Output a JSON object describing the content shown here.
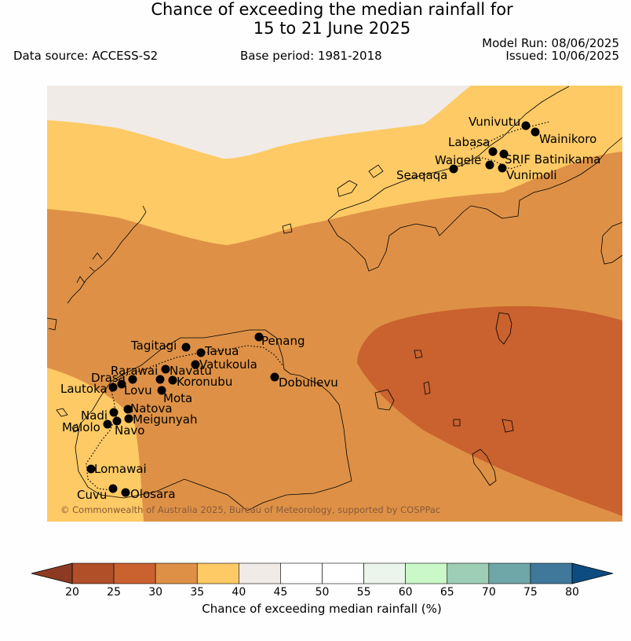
{
  "title": {
    "line1": "Chance of exceeding the median rainfall for",
    "line2": "15 to 21 June 2025"
  },
  "meta": {
    "data_source": "Data source: ACCESS-S2",
    "base_period": "Base period: 1981-2018",
    "model_run": "Model Run: 08/06/2025",
    "issued": "Issued: 10/06/2025"
  },
  "copyright": "© Commonwealth of Australia 2025, Bureau of Meteorology, supported by COSPPac",
  "towns": [
    {
      "name": "Vunivutu"
    },
    {
      "name": "Wainikoro"
    },
    {
      "name": "Labasa"
    },
    {
      "name": "SRIF Batinikama"
    },
    {
      "name": "Waiqele"
    },
    {
      "name": "Seaqaqa"
    },
    {
      "name": "Vunimoli"
    },
    {
      "name": "Tagitagi"
    },
    {
      "name": "Tavua"
    },
    {
      "name": "Penang"
    },
    {
      "name": "Rarawai"
    },
    {
      "name": "Navatu"
    },
    {
      "name": "Vatukoula"
    },
    {
      "name": "Drasa"
    },
    {
      "name": "Koronubu"
    },
    {
      "name": "Dobuilevu"
    },
    {
      "name": "Lautoka"
    },
    {
      "name": "Lovu"
    },
    {
      "name": "Mota"
    },
    {
      "name": "Nadi"
    },
    {
      "name": "Natova"
    },
    {
      "name": "Meigunyah"
    },
    {
      "name": "Malolo"
    },
    {
      "name": "Navo"
    },
    {
      "name": "Lomawai"
    },
    {
      "name": "Cuvu"
    },
    {
      "name": "Olosara"
    }
  ],
  "colorbar": {
    "title": "Chance of exceeding median rainfall (%)",
    "ticks": [
      "20",
      "25",
      "30",
      "35",
      "40",
      "45",
      "50",
      "55",
      "60",
      "65",
      "70",
      "75",
      "80"
    ],
    "colors": [
      "#b04f28",
      "#c9622f",
      "#de9146",
      "#fdca65",
      "#f0ebe6",
      "#ffffff",
      "#ffffff",
      "#ebf5eb",
      "#caf8c8",
      "#9ecfb6",
      "#6fa6a8",
      "#40789b"
    ],
    "under_color": "#8d3a22",
    "over_color": "#0d4c80"
  },
  "map_colors": {
    "bin_40_45": "#f0ebe6",
    "bin_35_40": "#fdca65",
    "bin_30_35": "#de9146",
    "bin_25_30": "#c9622f"
  }
}
